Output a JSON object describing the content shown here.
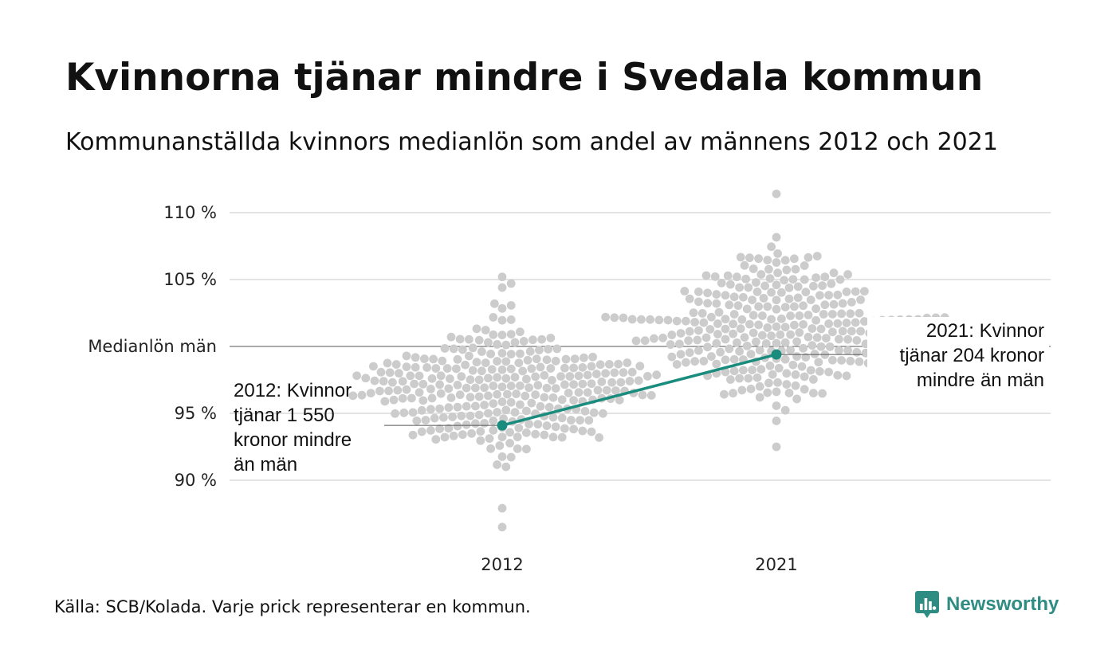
{
  "title": "Kvinnorna tjänar mindre i Svedala kommun",
  "subtitle": "Kommunanställda kvinnors medianlön som andel av männens 2012 och 2021",
  "source": "Källa: SCB/Kolada. Varje prick representerar en kommun.",
  "brand": "Newsworthy",
  "colors": {
    "dots": "#cccccc",
    "highlight": "#1a8c7e",
    "grid": "#e3e3e3",
    "reference": "#555555",
    "brand": "#2e8c83"
  },
  "chart_data": {
    "type": "scatter",
    "x_categories": [
      "2012",
      "2021"
    ],
    "y_ticks": [
      {
        "value": 90,
        "label": "90 %"
      },
      {
        "value": 95,
        "label": "95 %"
      },
      {
        "value": 100,
        "label": "Medianlön män"
      },
      {
        "value": 105,
        "label": "105 %"
      },
      {
        "value": 110,
        "label": "110 %"
      }
    ],
    "ylim": [
      86.2,
      111.4
    ],
    "reference_line": {
      "value": 100
    },
    "highlight": {
      "name": "Svedala",
      "points": [
        {
          "x": "2012",
          "y": 94.1
        },
        {
          "x": "2021",
          "y": 99.4
        }
      ]
    },
    "annotations": [
      {
        "x": "2012",
        "lines": [
          "2012: Kvinnor",
          "tjänar 1 550",
          "kronor mindre",
          "än män"
        ]
      },
      {
        "x": "2021",
        "lines": [
          "2021: Kvinnor",
          "tjänar 204 kronor",
          "mindre än män"
        ]
      }
    ],
    "beeswarm": {
      "2012": {
        "min": 86.5,
        "max": 105.2,
        "center": 97.0,
        "sd": 2.5,
        "count": 290
      },
      "2021": {
        "min": 92.5,
        "max": 111.4,
        "center": 101.5,
        "sd": 2.6,
        "count": 290
      }
    }
  }
}
